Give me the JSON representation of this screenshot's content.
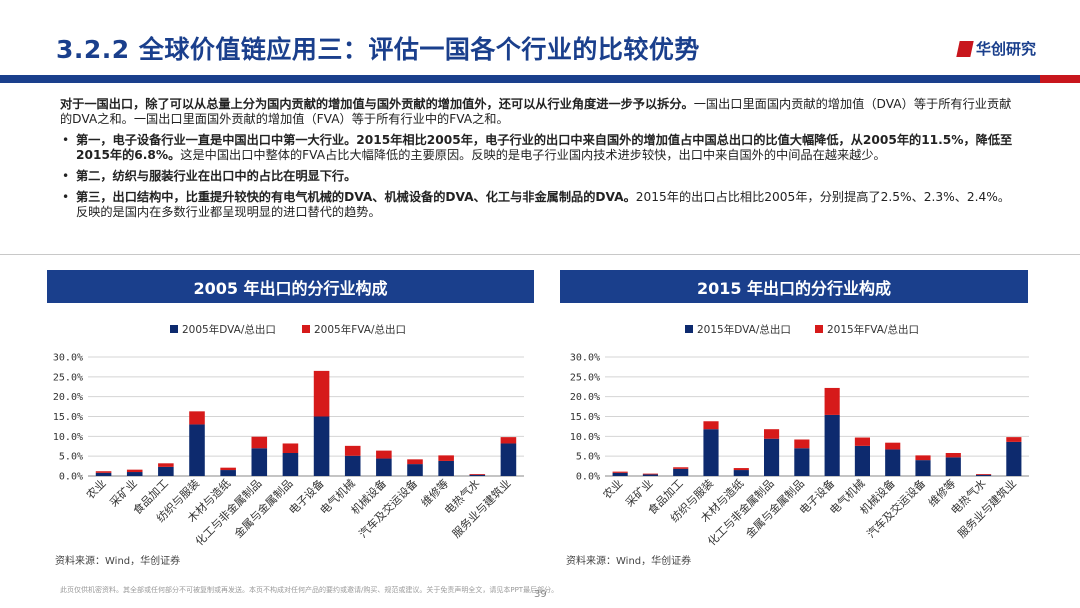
{
  "header": {
    "title": "3.2.2 全球价值链应用三：评估一国各个行业的比较优势",
    "logo_text": "华创研究",
    "brand_blue": "#1a3f8c",
    "brand_red": "#c8161d"
  },
  "text": {
    "intro_bold": "对于一国出口，除了可以从总量上分为国内贡献的增加值与国外贡献的增加值外，还可以从行业角度进一步予以拆分。",
    "intro_rest": "一国出口里面国内贡献的增加值（DVA）等于所有行业贡献的DVA之和。一国出口里面国外贡献的增加值（FVA）等于所有行业中的FVA之和。",
    "b1_bold": "第一，电子设备行业一直是中国出口中第一大行业。2015年相比2005年，电子行业的出口中来自国外的增加值占中国总出口的比值大幅降低，从2005年的11.5%，降低至2015年的6.8%。",
    "b1_rest": "这是中国出口中整体的FVA占比大幅降低的主要原因。反映的是电子行业国内技术进步较快，出口中来自国外的中间品在越来越少。",
    "b2_bold": "第二，纺织与服装行业在出口中的占比在明显下行。",
    "b3_bold": "第三，出口结构中，比重提升较快的有电气机械的DVA、机械设备的DVA、化工与非金属制品的DVA。",
    "b3_rest": "2015年的出口占比相比2005年，分别提高了2.5%、2.3%、2.4%。反映的是国内在多数行业都呈现明显的进口替代的趋势。"
  },
  "chart_titles": {
    "left": "2005 年出口的分行业构成",
    "right": "2015 年出口的分行业构成"
  },
  "chart_data": [
    {
      "type": "bar",
      "stacked": true,
      "title": "2005 年出口的分行业构成",
      "categories": [
        "农业",
        "采矿业",
        "食品加工",
        "纺织与服装",
        "木材与造纸",
        "化工与非金属制品",
        "金属与金属制品",
        "电子设备",
        "电气机械",
        "机械设备",
        "汽车及交运设备",
        "维修等",
        "电热气水",
        "服务业与建筑业"
      ],
      "series": [
        {
          "name": "2005年DVA/总出口",
          "color": "#0d2a6e",
          "values": [
            0.8,
            1.0,
            2.3,
            13.0,
            1.5,
            7.0,
            5.8,
            15.0,
            5.1,
            4.4,
            3.0,
            3.8,
            0.3,
            8.2
          ]
        },
        {
          "name": "2005年FVA/总出口",
          "color": "#d61a1a",
          "values": [
            0.4,
            0.6,
            0.9,
            3.3,
            0.6,
            2.9,
            2.4,
            11.5,
            2.5,
            2.0,
            1.2,
            1.4,
            0.2,
            1.6
          ]
        }
      ],
      "ylim": [
        0,
        30
      ],
      "yticks": [
        "0.0%",
        "5.0%",
        "10.0%",
        "15.0%",
        "20.0%",
        "25.0%",
        "30.0%"
      ],
      "legend": "top-center",
      "source": "资料来源：Wind，华创证券"
    },
    {
      "type": "bar",
      "stacked": true,
      "title": "2015 年出口的分行业构成",
      "categories": [
        "农业",
        "采矿业",
        "食品加工",
        "纺织与服装",
        "木材与造纸",
        "化工与非金属制品",
        "金属与金属制品",
        "电子设备",
        "电气机械",
        "机械设备",
        "汽车及交运设备",
        "维修等",
        "电热气水",
        "服务业与建筑业"
      ],
      "series": [
        {
          "name": "2015年DVA/总出口",
          "color": "#0d2a6e",
          "values": [
            0.8,
            0.4,
            1.8,
            11.8,
            1.5,
            9.4,
            7.0,
            15.4,
            7.6,
            6.7,
            4.0,
            4.7,
            0.3,
            8.6
          ]
        },
        {
          "name": "2015年FVA/总出口",
          "color": "#d61a1a",
          "values": [
            0.3,
            0.2,
            0.4,
            2.0,
            0.5,
            2.4,
            2.2,
            6.8,
            2.1,
            1.7,
            1.2,
            1.1,
            0.2,
            1.2
          ]
        }
      ],
      "ylim": [
        0,
        30
      ],
      "yticks": [
        "0.0%",
        "5.0%",
        "10.0%",
        "15.0%",
        "20.0%",
        "25.0%",
        "30.0%"
      ],
      "legend": "top-center",
      "source": "资料来源：Wind，华创证券"
    }
  ],
  "footer": {
    "disclaimer": "此页仅供机密资料。其全部或任何部分不可被复制或再发送。本页不构成对任何产品的要约或邀请/购买、规范或建议。关于免责声明全文，请见本PPT最后部分。",
    "page": "39"
  }
}
